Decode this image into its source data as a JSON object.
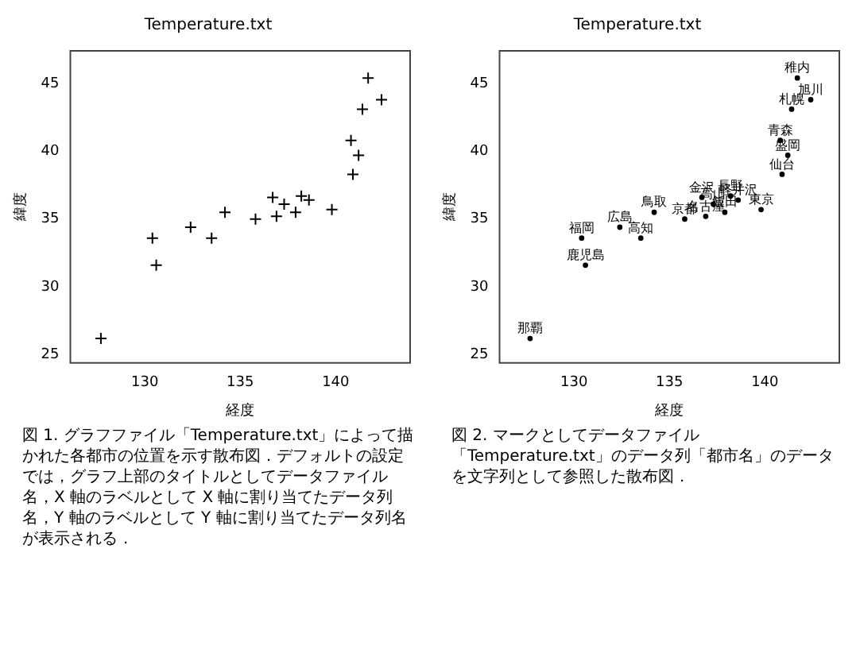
{
  "chart_data": [
    {
      "type": "scatter",
      "title": "Temperature.txt",
      "xlabel": "経度",
      "ylabel": "緯度",
      "x": [
        127.7,
        130.4,
        130.6,
        132.4,
        133.5,
        134.2,
        135.8,
        136.7,
        136.9,
        137.3,
        137.9,
        138.2,
        138.6,
        139.8,
        140.9,
        141.2,
        140.8,
        141.4,
        141.7,
        142.4
      ],
      "values": [
        26.2,
        33.6,
        31.6,
        34.4,
        33.6,
        35.5,
        35.0,
        36.6,
        35.2,
        36.1,
        35.5,
        36.7,
        36.4,
        35.7,
        38.3,
        39.7,
        40.8,
        43.1,
        45.4,
        43.8
      ],
      "color": "#000000",
      "marker": "cross",
      "grid": false,
      "legend": false,
      "xlim": [
        126.1,
        143.9
      ],
      "ylim": [
        24.4,
        47.4
      ],
      "xticks": [
        130,
        135,
        140
      ],
      "yticks": [
        25,
        30,
        35,
        40,
        45
      ],
      "annotations": [
        "図 1. グラフファイル「Temperature.txt」によって描かれた各都市の位置を示す散布図．デフォルトの設定では，グラフ上部のタイトルとしてデータファイル名，X 軸のラベルとして X 軸に割り当てたデータ列名，Y 軸のラベルとして Y 軸に割り当てたデータ列名が表示される．"
      ]
    },
    {
      "type": "scatter",
      "title": "Temperature.txt",
      "xlabel": "経度",
      "ylabel": "緯度",
      "x": [
        127.7,
        130.4,
        130.6,
        132.4,
        133.5,
        134.2,
        135.8,
        136.7,
        136.9,
        137.3,
        137.9,
        138.2,
        138.6,
        139.8,
        140.9,
        141.2,
        140.8,
        141.4,
        141.7,
        142.4
      ],
      "values": [
        26.2,
        33.6,
        31.6,
        34.4,
        33.6,
        35.5,
        35.0,
        36.6,
        35.2,
        36.1,
        35.5,
        36.7,
        36.4,
        35.7,
        38.3,
        39.7,
        40.8,
        43.1,
        45.4,
        43.8
      ],
      "value_labels": [
        "那覇",
        "福岡",
        "鹿児島",
        "広島",
        "高知",
        "鳥取",
        "京都",
        "金沢",
        "名古屋",
        "高山",
        "飯田",
        "長野",
        "軽井沢",
        "東京",
        "仙台",
        "盛岡",
        "青森",
        "札幌",
        "稚内",
        "旭川"
      ],
      "color": "#000000",
      "marker": "circle",
      "grid": false,
      "legend": false,
      "xlim": [
        126.1,
        143.9
      ],
      "ylim": [
        24.4,
        47.4
      ],
      "xticks": [
        130,
        135,
        140
      ],
      "yticks": [
        25,
        30,
        35,
        40,
        45
      ],
      "annotations": [
        "図 2. マークとしてデータファイル「Temperature.txt」のデータ列「都市名」のデータを文字列として参照した散布図．"
      ]
    }
  ]
}
